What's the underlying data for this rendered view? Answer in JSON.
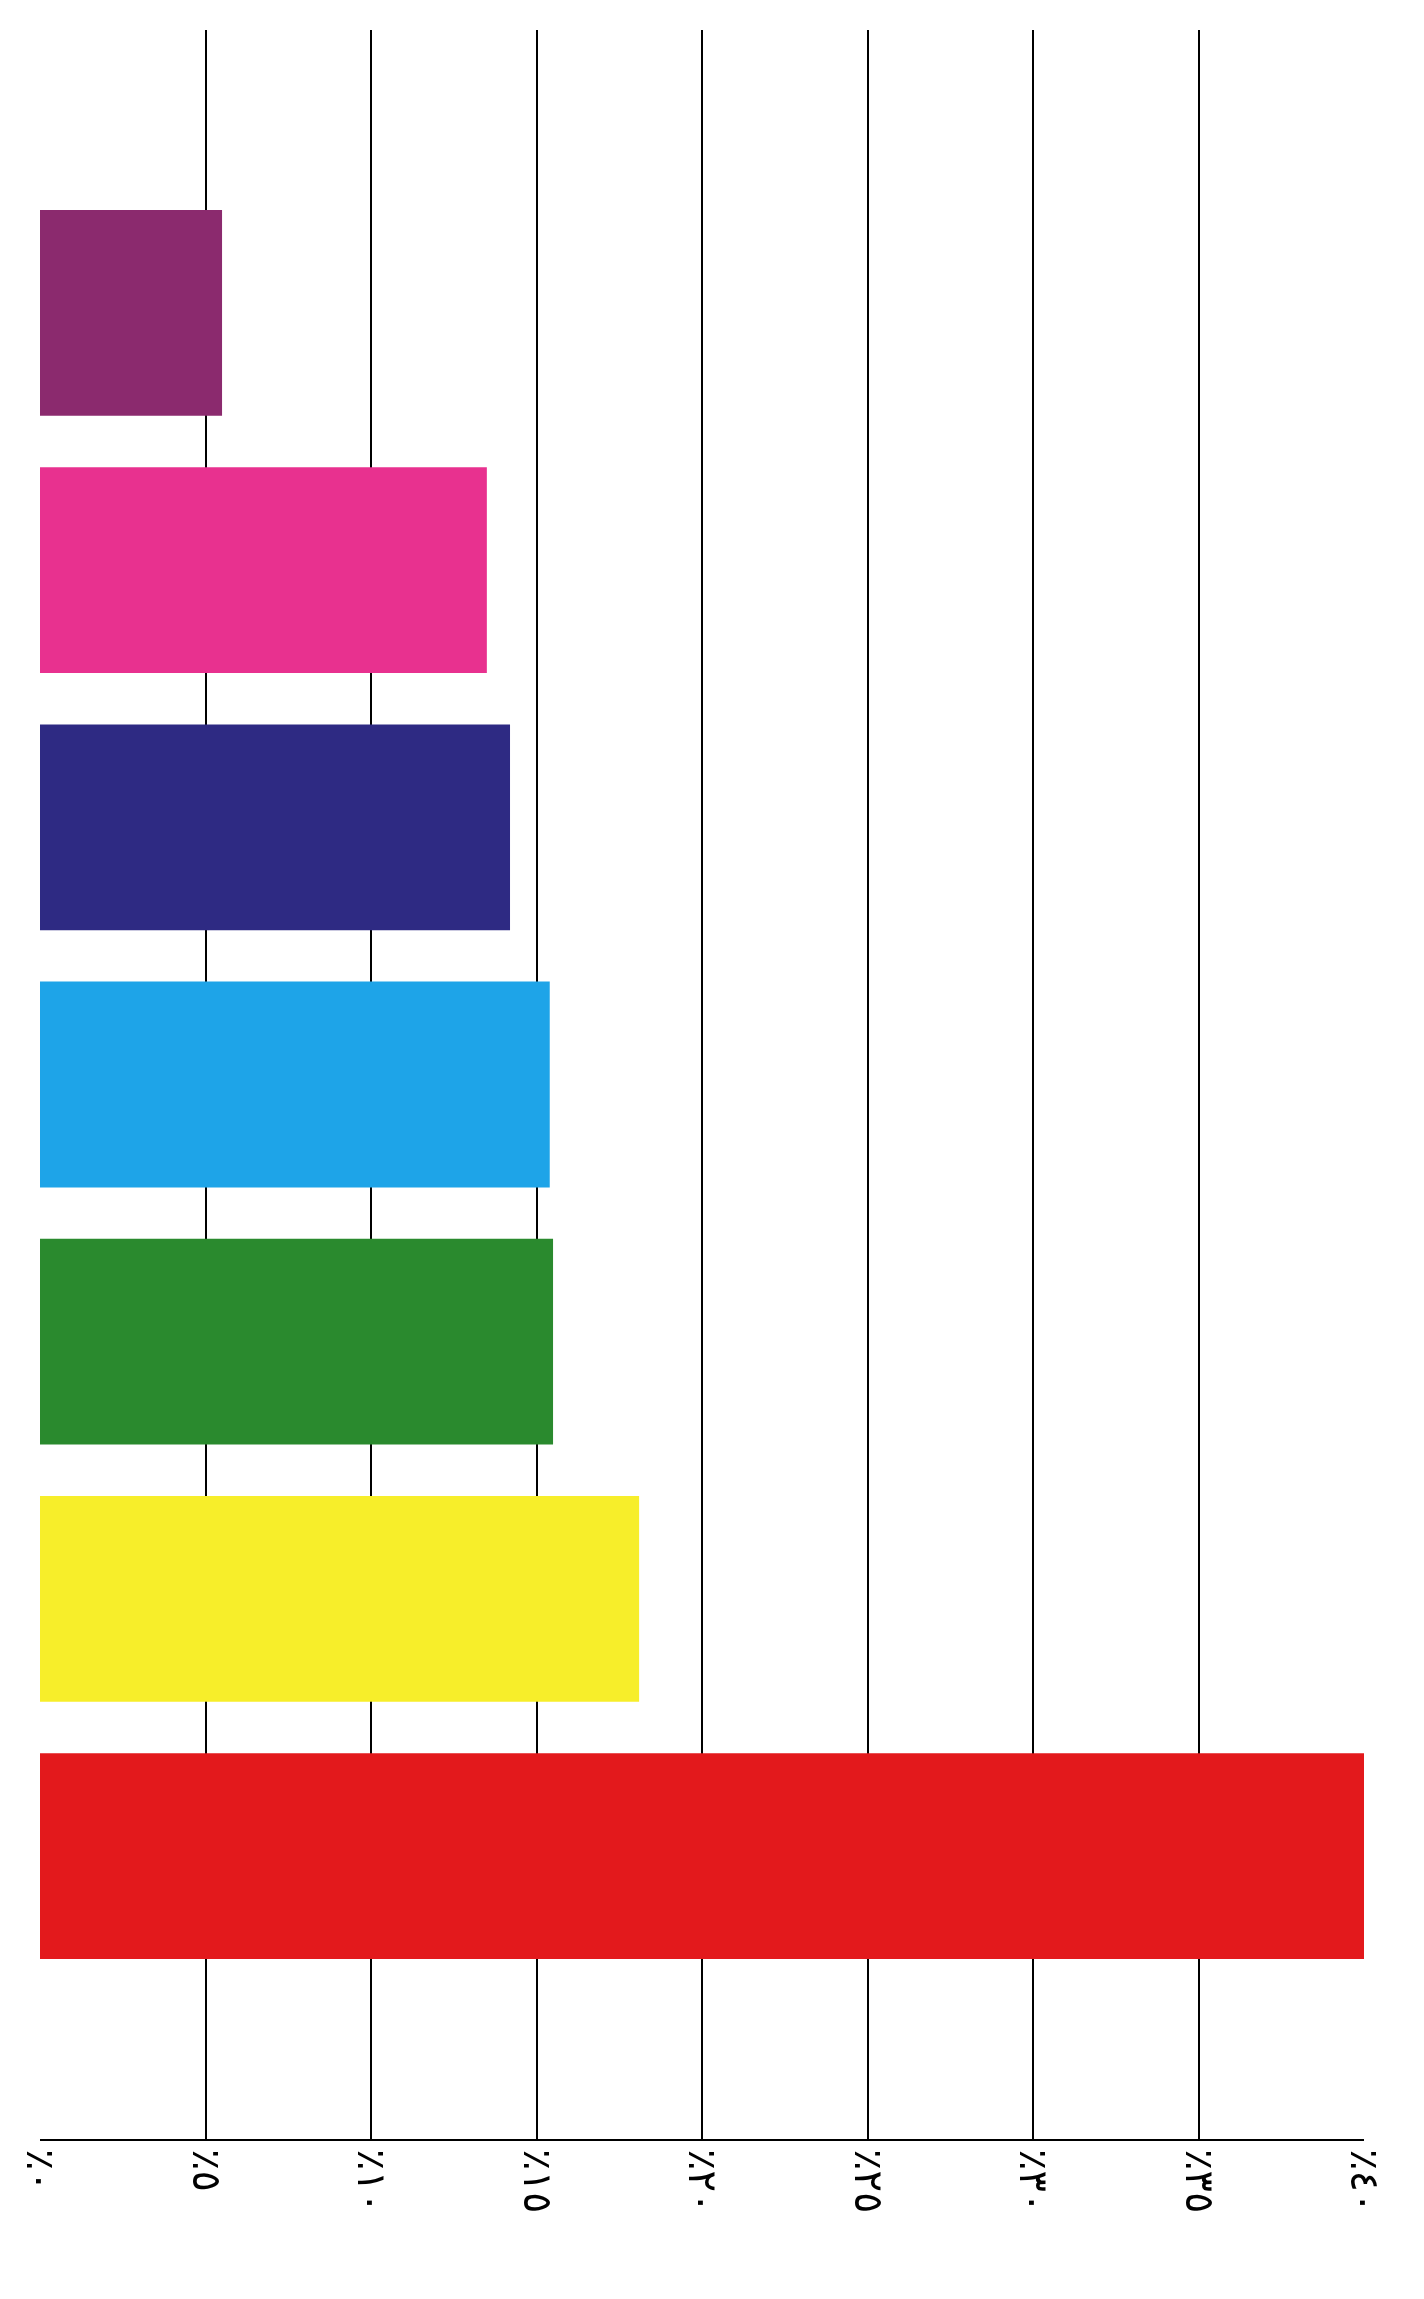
{
  "chart_data": {
    "type": "bar",
    "orientation": "horizontal",
    "categories": [
      null,
      null,
      null,
      null,
      null,
      null,
      null
    ],
    "values": [
      5.5,
      13.5,
      14.2,
      15.4,
      15.5,
      18.1,
      40
    ],
    "colors": [
      "#8b2a6e",
      "#e8318f",
      "#2e2a83",
      "#1ea4e8",
      "#2a8a2e",
      "#f7ee2a",
      "#e3191c"
    ],
    "xlim": [
      0,
      40
    ],
    "xticks": [
      {
        "value": 0,
        "label": "٪٠"
      },
      {
        "value": 5,
        "label": "٪٥"
      },
      {
        "value": 10,
        "label": "٪١٠"
      },
      {
        "value": 15,
        "label": "٪١٥"
      },
      {
        "value": 20,
        "label": "٪٢٠"
      },
      {
        "value": 25,
        "label": "٪٢٥"
      },
      {
        "value": 30,
        "label": "٪٣٠"
      },
      {
        "value": 35,
        "label": "٪٣٥"
      },
      {
        "value": 40,
        "label": "٪٤٠"
      }
    ],
    "grid": "x"
  }
}
